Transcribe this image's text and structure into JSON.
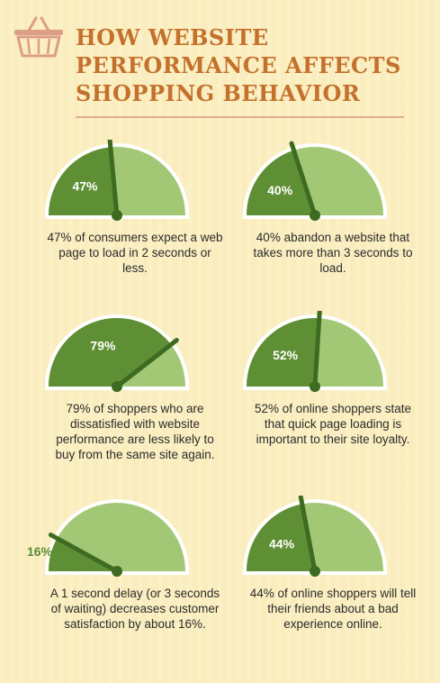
{
  "header": {
    "title": "HOW WEBSITE\nPERFORMANCE AFFECTS\nSHOPPING BEHAVIOR",
    "basket_icon": "shopping-basket-icon"
  },
  "colors": {
    "dark_green": "#5f8f34",
    "light_green": "#a3c875",
    "needle": "#3d6b21",
    "title": "#c4712c",
    "rule": "#e2ae8f"
  },
  "stats": [
    {
      "percent": 47,
      "label": "47%",
      "caption": "47% of consumers expect a web page to load in 2 seconds or less."
    },
    {
      "percent": 40,
      "label": "40%",
      "caption": "40% abandon a website that takes more than 3 seconds to load."
    },
    {
      "percent": 79,
      "label": "79%",
      "caption": "79% of shoppers who are dissatisfied with website performance are less likely to buy from the same site again."
    },
    {
      "percent": 52,
      "label": "52%",
      "caption": "52% of online shoppers state that quick page loading is important to their site loyalty."
    },
    {
      "percent": 16,
      "label": "16%",
      "caption": "A 1 second delay (or 3 seconds of waiting) decreases customer satisfaction by about 16%."
    },
    {
      "percent": 44,
      "label": "44%",
      "caption": "44% of online shoppers will tell their friends about a bad experience online."
    }
  ]
}
